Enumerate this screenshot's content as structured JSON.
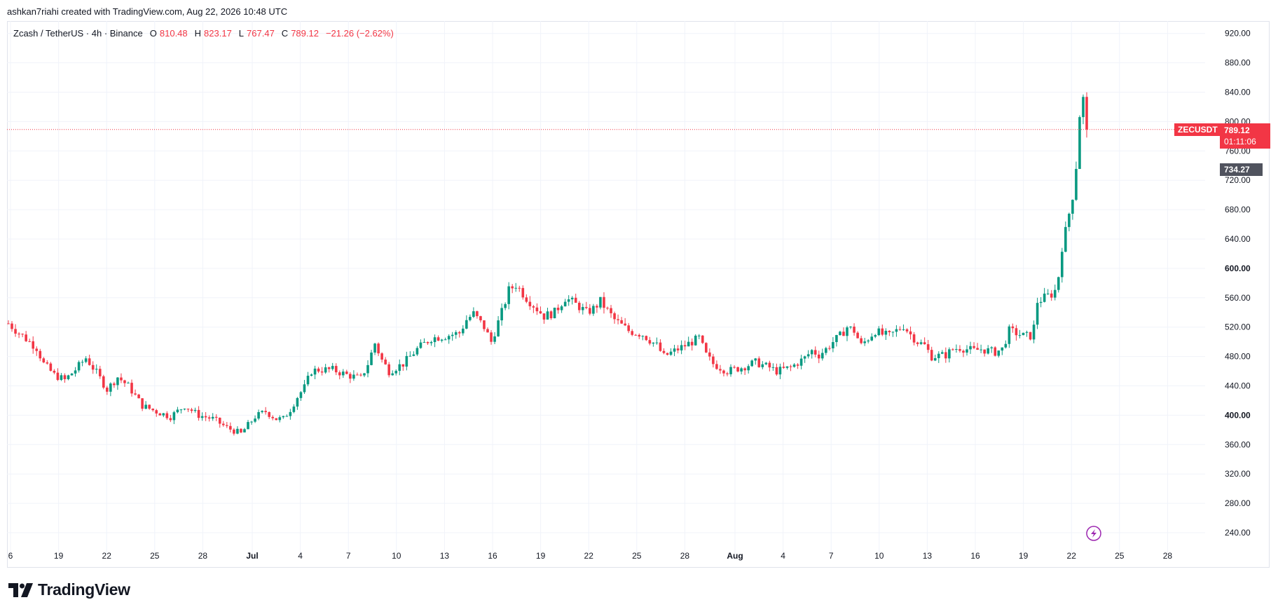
{
  "header": {
    "attribution": "ashkan7riahi created with TradingView.com, Aug 22, 2026 10:48 UTC"
  },
  "legend": {
    "symbol": "Zcash / TetherUS · 4h · Binance",
    "open_label": "O",
    "open": "810.48",
    "high_label": "H",
    "high": "823.17",
    "low_label": "L",
    "low": "767.47",
    "close_label": "C",
    "close": "789.12",
    "change": "−21.26 (−2.62%)"
  },
  "badges": {
    "ticker": "ZECUSDT",
    "last_price": "789.12",
    "countdown": "01:11:06",
    "marker_price": "734.27"
  },
  "branding": {
    "logo_text": "TradingView"
  },
  "colors": {
    "up": "#089981",
    "down": "#f23645",
    "grid": "#f0f3fa",
    "text": "#131722",
    "alert": "#9c27b0"
  },
  "chart_data": {
    "type": "candlestick",
    "title": "Zcash / TetherUS · 4h · Binance",
    "ylim": [
      220,
      940
    ],
    "y_ticks": [
      "920.00",
      "880.00",
      "840.00",
      "800.00",
      "760.00",
      "720.00",
      "680.00",
      "640.00",
      "600.00",
      "560.00",
      "520.00",
      "480.00",
      "440.00",
      "400.00",
      "360.00",
      "320.00",
      "280.00",
      "240.00"
    ],
    "x_ticks": [
      "6",
      "19",
      "22",
      "25",
      "28",
      "Jul",
      "4",
      "7",
      "10",
      "13",
      "16",
      "19",
      "22",
      "25",
      "28",
      "Aug",
      "4",
      "7",
      "10",
      "13",
      "16",
      "19",
      "22",
      "25",
      "28"
    ],
    "last_price": 789.12,
    "marker_price": 734.27,
    "path_points": [
      [
        0,
        525
      ],
      [
        3,
        512
      ],
      [
        6,
        500
      ],
      [
        8,
        492
      ],
      [
        10,
        470
      ],
      [
        13,
        455
      ],
      [
        16,
        448
      ],
      [
        19,
        462
      ],
      [
        22,
        478
      ],
      [
        25,
        458
      ],
      [
        28,
        435
      ],
      [
        31,
        452
      ],
      [
        34,
        440
      ],
      [
        38,
        413
      ],
      [
        42,
        405
      ],
      [
        46,
        398
      ],
      [
        50,
        413
      ],
      [
        54,
        400
      ],
      [
        58,
        395
      ],
      [
        62,
        383
      ],
      [
        66,
        375
      ],
      [
        70,
        398
      ],
      [
        73,
        405
      ],
      [
        76,
        395
      ],
      [
        78,
        395
      ],
      [
        80,
        408
      ],
      [
        82,
        425
      ],
      [
        84,
        438
      ],
      [
        86,
        460
      ],
      [
        88,
        462
      ],
      [
        92,
        462
      ],
      [
        96,
        455
      ],
      [
        100,
        450
      ],
      [
        102,
        470
      ],
      [
        104,
        498
      ],
      [
        106,
        475
      ],
      [
        108,
        460
      ],
      [
        112,
        470
      ],
      [
        116,
        490
      ],
      [
        120,
        505
      ],
      [
        124,
        508
      ],
      [
        128,
        512
      ],
      [
        130,
        530
      ],
      [
        132,
        538
      ],
      [
        135,
        520
      ],
      [
        137,
        500
      ],
      [
        140,
        540
      ],
      [
        142,
        570
      ],
      [
        144,
        578
      ],
      [
        147,
        560
      ],
      [
        150,
        545
      ],
      [
        152,
        535
      ],
      [
        155,
        540
      ],
      [
        158,
        560
      ],
      [
        162,
        548
      ],
      [
        164,
        540
      ],
      [
        166,
        545
      ],
      [
        168,
        555
      ],
      [
        172,
        530
      ],
      [
        176,
        515
      ],
      [
        180,
        510
      ],
      [
        184,
        495
      ],
      [
        186,
        480
      ],
      [
        190,
        490
      ],
      [
        194,
        500
      ],
      [
        196,
        505
      ],
      [
        198,
        482
      ],
      [
        200,
        470
      ],
      [
        204,
        460
      ],
      [
        208,
        465
      ],
      [
        212,
        472
      ],
      [
        216,
        465
      ],
      [
        218,
        460
      ],
      [
        222,
        465
      ],
      [
        226,
        478
      ],
      [
        228,
        488
      ],
      [
        230,
        482
      ],
      [
        232,
        490
      ],
      [
        234,
        500
      ],
      [
        236,
        508
      ],
      [
        238,
        520
      ],
      [
        240,
        515
      ],
      [
        242,
        495
      ],
      [
        244,
        505
      ],
      [
        246,
        515
      ],
      [
        248,
        510
      ],
      [
        250,
        508
      ],
      [
        252,
        515
      ],
      [
        254,
        522
      ],
      [
        256,
        510
      ],
      [
        258,
        500
      ],
      [
        260,
        495
      ],
      [
        262,
        480
      ],
      [
        266,
        482
      ],
      [
        268,
        490
      ],
      [
        270,
        492
      ],
      [
        274,
        488
      ],
      [
        276,
        490
      ],
      [
        278,
        488
      ],
      [
        280,
        486
      ],
      [
        282,
        490
      ],
      [
        284,
        515
      ],
      [
        286,
        512
      ],
      [
        288,
        508
      ],
      [
        290,
        508
      ],
      [
        291,
        520
      ],
      [
        292,
        555
      ],
      [
        294,
        560
      ],
      [
        296,
        565
      ],
      [
        297,
        570
      ],
      [
        298,
        590
      ],
      [
        299,
        630
      ],
      [
        300,
        650
      ],
      [
        301,
        675
      ],
      [
        302,
        700
      ],
      [
        303,
        740
      ],
      [
        304,
        810
      ],
      [
        304.5,
        850
      ],
      [
        305,
        830
      ],
      [
        305.5,
        810
      ],
      [
        306,
        789
      ]
    ]
  }
}
